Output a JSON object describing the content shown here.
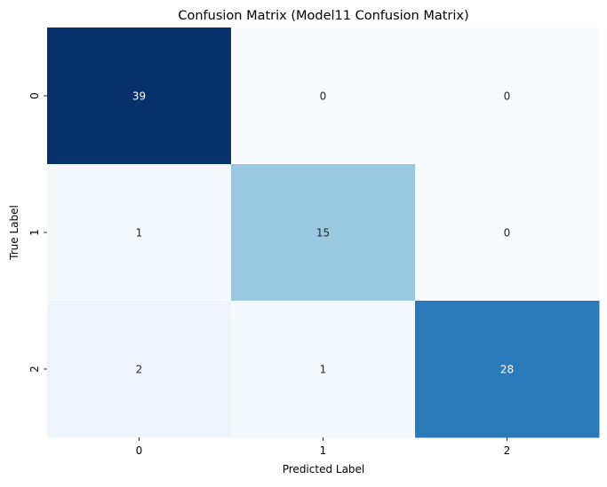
{
  "chart_data": {
    "type": "heatmap",
    "title": "Confusion Matrix (Model11 Confusion Matrix)",
    "xlabel": "Predicted Label",
    "ylabel": "True Label",
    "x_categories": [
      "0",
      "1",
      "2"
    ],
    "y_categories": [
      "0",
      "1",
      "2"
    ],
    "values": [
      [
        39,
        0,
        0
      ],
      [
        1,
        15,
        0
      ],
      [
        2,
        1,
        28
      ]
    ],
    "colormap": "Blues",
    "vmin": 0,
    "vmax": 39,
    "colorbar": false,
    "annotated": true,
    "grid": false,
    "cell_colors": [
      [
        "#08306b",
        "#f7fbff",
        "#f7fbff"
      ],
      [
        "#f4f9fe",
        "#9ac8e0",
        "#f7fbff"
      ],
      [
        "#eef5fc",
        "#f4f9fe",
        "#2a7aba"
      ]
    ],
    "annotation_colors": {
      "dark_cell_text": "#ffffff",
      "light_cell_text": "#262626"
    }
  }
}
